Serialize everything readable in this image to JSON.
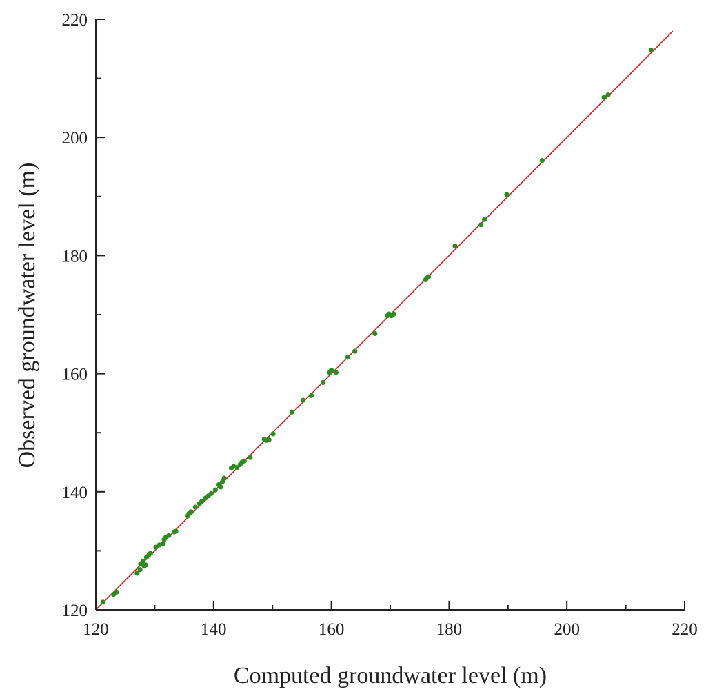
{
  "chart_data": {
    "type": "scatter",
    "title": "",
    "xlabel": "Computed groundwater level (m)",
    "ylabel": "Observed groundwater level (m)",
    "xlim": [
      120,
      220
    ],
    "ylim": [
      120,
      220
    ],
    "xticks": [
      120,
      140,
      160,
      180,
      200,
      220
    ],
    "yticks": [
      120,
      140,
      160,
      180,
      200,
      220
    ],
    "grid": false,
    "legend": "none",
    "marker_color": "#2e8b22",
    "reference_line": {
      "type": "y=x",
      "from": [
        120,
        120
      ],
      "to": [
        218,
        218
      ],
      "color": "#d62020"
    },
    "series": [
      {
        "points": [
          [
            121.2,
            121.3
          ],
          [
            123.0,
            122.6
          ],
          [
            123.5,
            123.0
          ],
          [
            127.0,
            126.2
          ],
          [
            127.5,
            126.8
          ],
          [
            127.6,
            127.8
          ],
          [
            128.0,
            128.2
          ],
          [
            128.2,
            127.4
          ],
          [
            128.5,
            127.6
          ],
          [
            128.6,
            128.9
          ],
          [
            129.0,
            129.3
          ],
          [
            129.3,
            129.6
          ],
          [
            130.2,
            130.6
          ],
          [
            130.8,
            131.0
          ],
          [
            131.4,
            131.2
          ],
          [
            131.6,
            131.9
          ],
          [
            131.9,
            132.3
          ],
          [
            132.4,
            132.6
          ],
          [
            133.3,
            133.2
          ],
          [
            133.6,
            133.3
          ],
          [
            135.6,
            135.9
          ],
          [
            135.8,
            136.3
          ],
          [
            136.2,
            136.6
          ],
          [
            136.9,
            137.4
          ],
          [
            137.6,
            138.0
          ],
          [
            138.0,
            138.4
          ],
          [
            138.6,
            138.9
          ],
          [
            139.1,
            139.3
          ],
          [
            139.6,
            139.7
          ],
          [
            140.3,
            140.3
          ],
          [
            140.9,
            141.2
          ],
          [
            141.2,
            140.8
          ],
          [
            141.5,
            141.7
          ],
          [
            141.8,
            142.3
          ],
          [
            143.0,
            144.0
          ],
          [
            143.4,
            144.3
          ],
          [
            144.0,
            144.1
          ],
          [
            144.5,
            144.6
          ],
          [
            144.8,
            145.0
          ],
          [
            145.2,
            145.2
          ],
          [
            146.2,
            145.8
          ],
          [
            148.6,
            148.9
          ],
          [
            149.0,
            148.7
          ],
          [
            149.4,
            148.8
          ],
          [
            150.1,
            149.8
          ],
          [
            153.3,
            153.5
          ],
          [
            155.2,
            155.5
          ],
          [
            156.6,
            156.3
          ],
          [
            158.6,
            158.5
          ],
          [
            159.7,
            160.2
          ],
          [
            160.0,
            160.6
          ],
          [
            160.8,
            160.2
          ],
          [
            162.8,
            162.8
          ],
          [
            164.0,
            163.8
          ],
          [
            167.4,
            166.8
          ],
          [
            169.5,
            169.8
          ],
          [
            169.8,
            170.1
          ],
          [
            170.2,
            169.8
          ],
          [
            170.6,
            170.1
          ],
          [
            176.0,
            175.9
          ],
          [
            176.2,
            176.2
          ],
          [
            176.5,
            176.4
          ],
          [
            181.0,
            181.6
          ],
          [
            185.4,
            185.2
          ],
          [
            186.0,
            186.1
          ],
          [
            189.8,
            190.3
          ],
          [
            195.8,
            196.1
          ],
          [
            206.3,
            206.8
          ],
          [
            207.0,
            207.2
          ],
          [
            214.3,
            214.8
          ]
        ]
      }
    ]
  }
}
